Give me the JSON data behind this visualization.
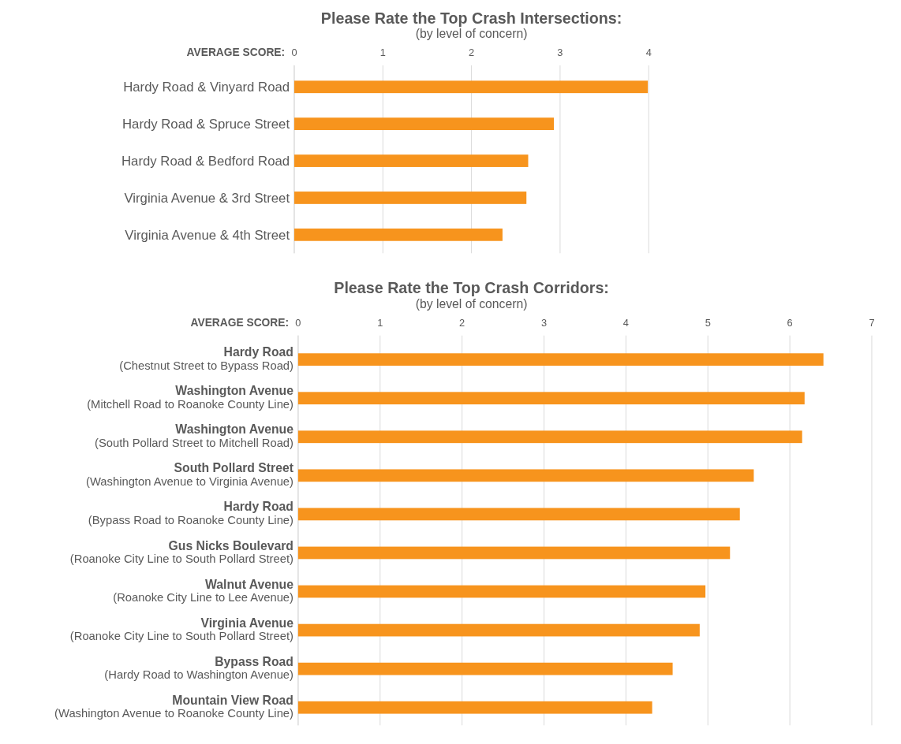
{
  "chart_data": [
    {
      "type": "bar",
      "orientation": "horizontal",
      "title": "Please Rate the Top Crash Intersections:",
      "subtitle": "(by level of concern)",
      "xlabel": "AVERAGE SCORE:",
      "categories": [
        "Hardy Road & Vinyard Road",
        "Hardy Road & Spruce Street",
        "Hardy Road & Bedford Road",
        "Virginia Avenue & 3rd Street",
        "Virginia Avenue & 4th Street"
      ],
      "values": [
        3.99,
        2.93,
        2.64,
        2.62,
        2.35
      ],
      "color": "#f7941d",
      "xlim": [
        0,
        4
      ],
      "xticks": [
        0,
        1,
        2,
        3,
        4
      ],
      "grid": "x"
    },
    {
      "type": "bar",
      "orientation": "horizontal",
      "title": "Please Rate the Top Crash Corridors:",
      "subtitle": "(by level of concern)",
      "xlabel": "AVERAGE SCORE:",
      "categories": [
        "Hardy Road\n(Chestnut Street to Bypass Road)",
        "Washington Avenue\n(Mitchell Road to Roanoke County Line)",
        "Washington Avenue\n(South Pollard Street to Mitchell Road)",
        "South Pollard Street\n(Washington Avenue to Virginia Avenue)",
        "Hardy Road\n(Bypass Road to Roanoke County Line)",
        "Gus Nicks Boulevard\n(Roanoke City Line to South Pollard Street)",
        "Walnut Avenue\n(Roanoke City Line to Lee Avenue)",
        "Virginia Avenue\n(Roanoke City Line to South Pollard Street)",
        "Bypass Road\n(Hardy Road to Washington Avenue)",
        "Mountain View Road\n(Washington Avenue to Roanoke County Line)"
      ],
      "values": [
        6.41,
        6.18,
        6.15,
        5.56,
        5.39,
        5.27,
        4.97,
        4.9,
        4.57,
        4.32
      ],
      "color": "#f7941d",
      "xlim": [
        0,
        7
      ],
      "xticks": [
        0,
        1,
        2,
        3,
        4,
        5,
        6,
        7
      ],
      "grid": "x"
    }
  ]
}
